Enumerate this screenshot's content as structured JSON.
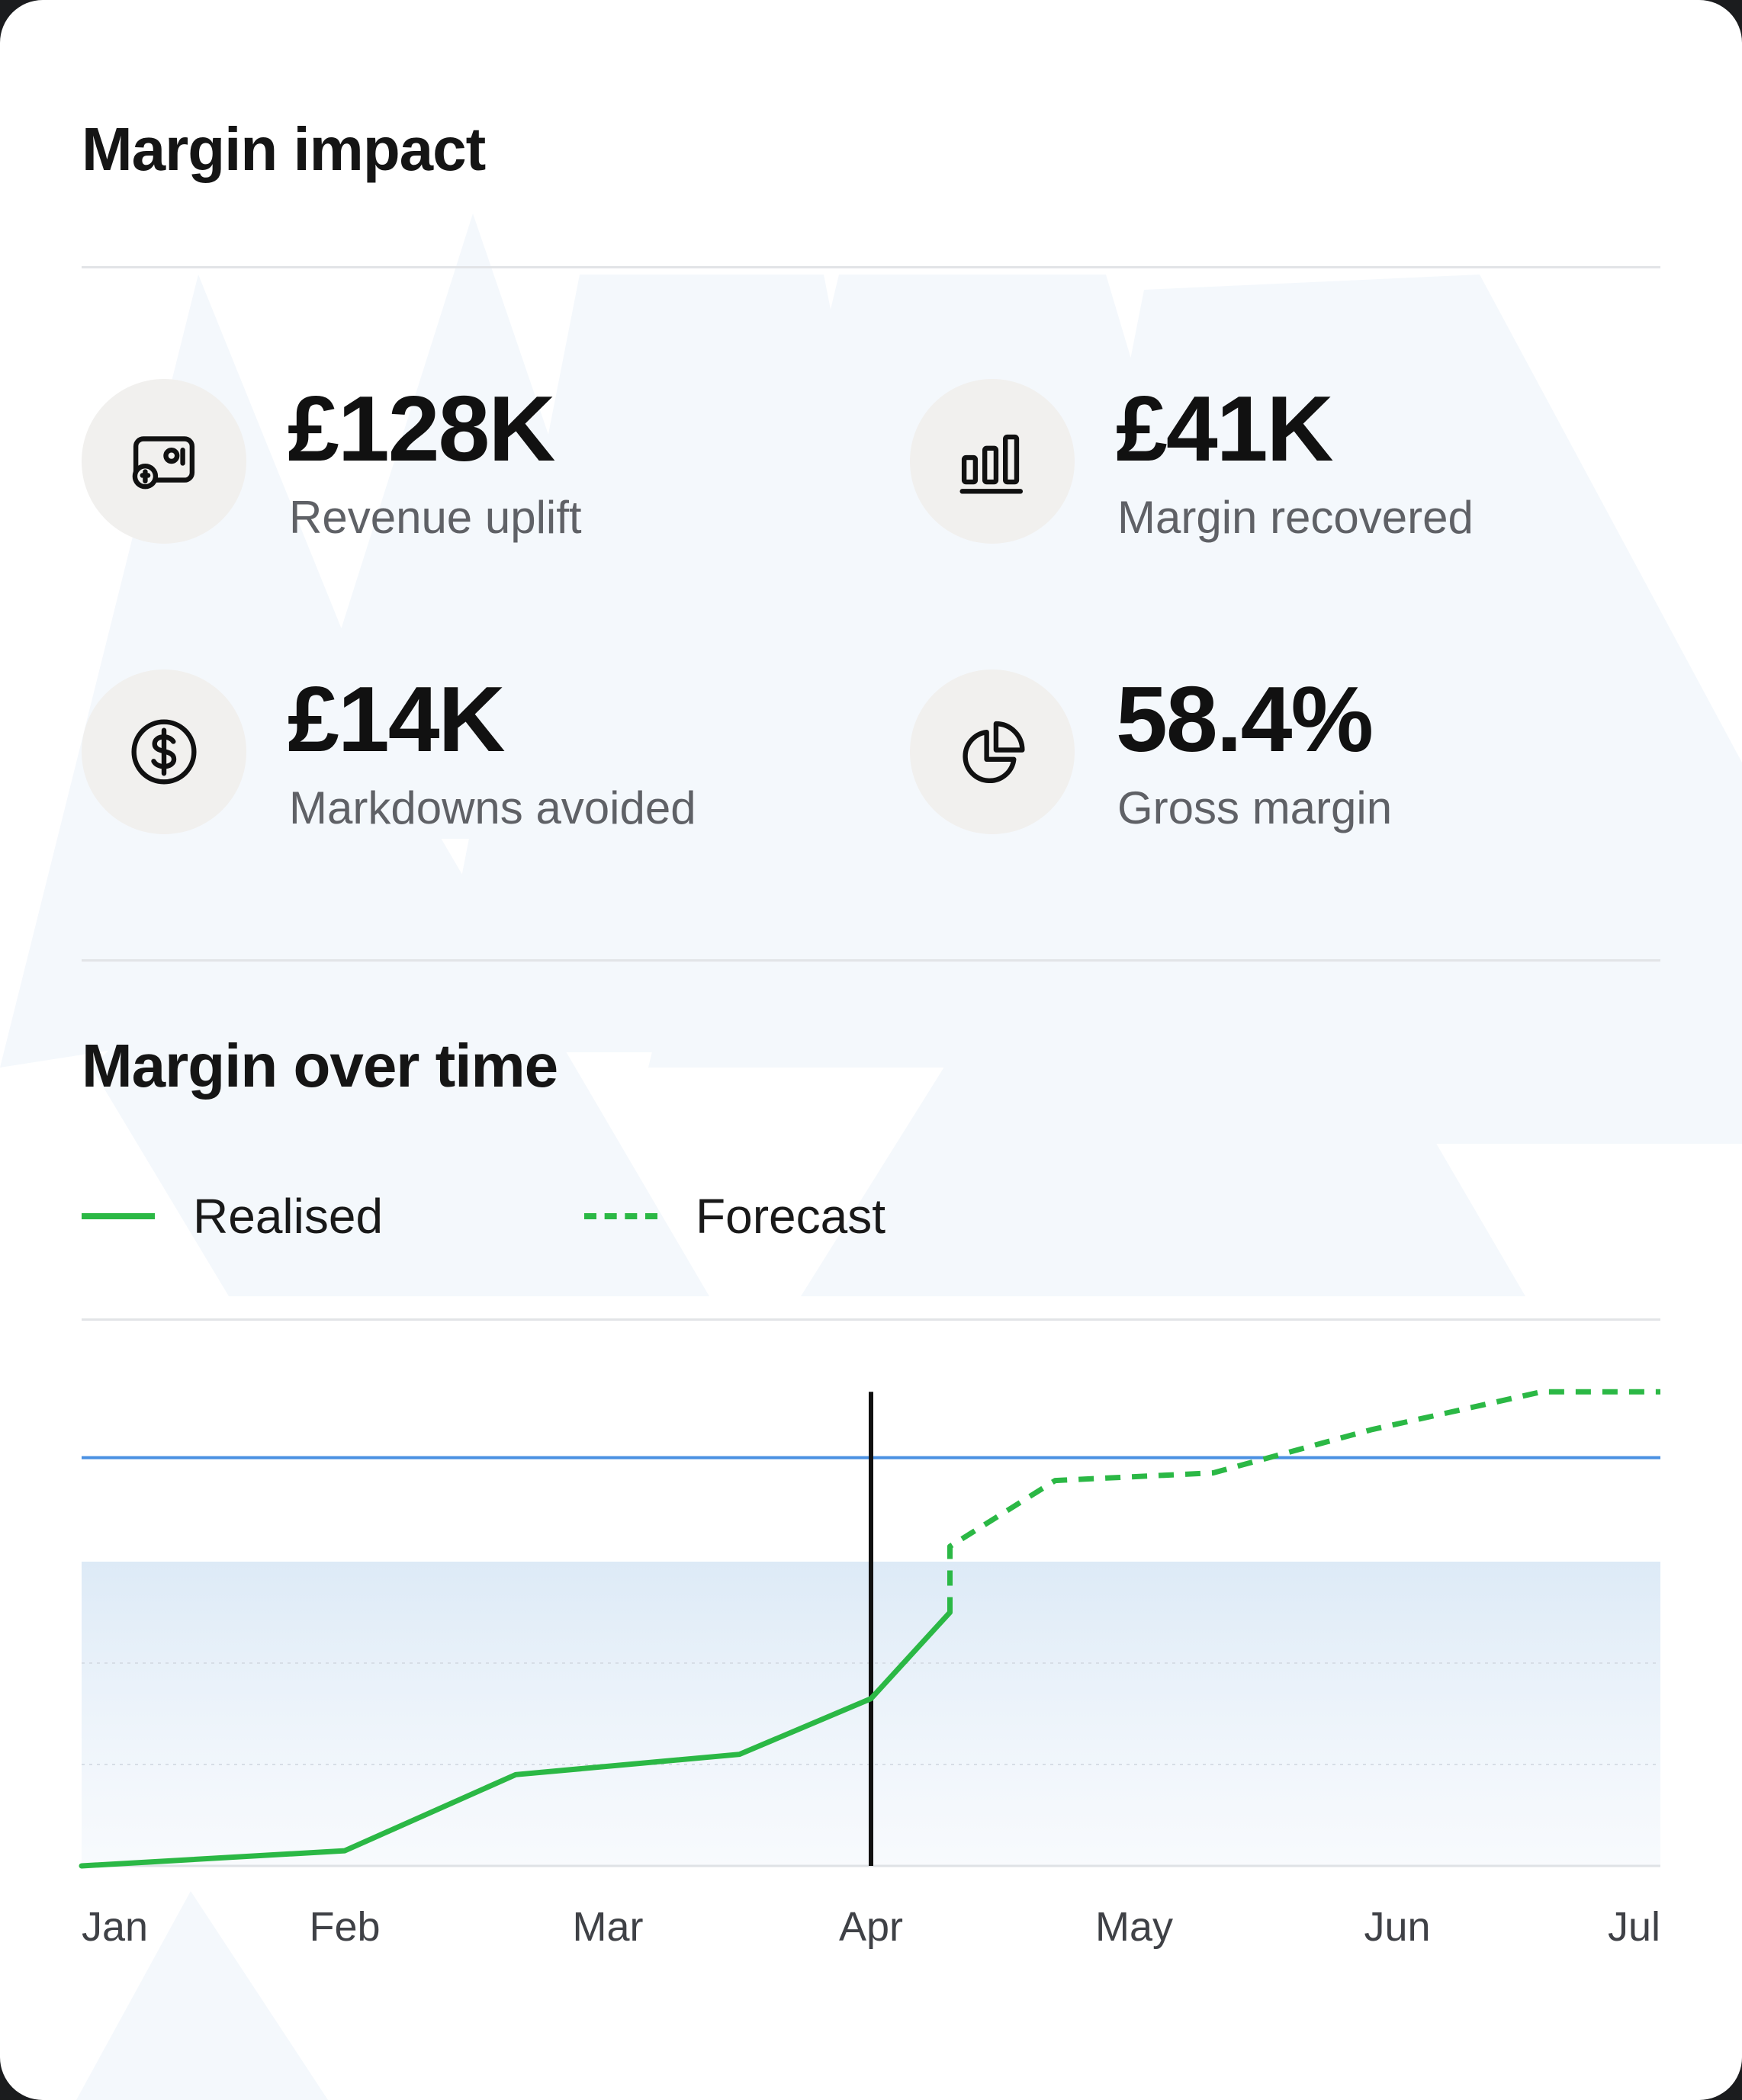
{
  "card": {
    "title": "Margin impact",
    "stats": [
      {
        "value": "£128K",
        "label": "Revenue uplift",
        "icon": "wallet-coin-icon"
      },
      {
        "value": "£41K",
        "label": "Margin recovered",
        "icon": "bar-chart-icon"
      },
      {
        "value": "£14K",
        "label": "Markdowns avoided",
        "icon": "dollar-coin-icon"
      },
      {
        "value": "58.4%",
        "label": "Gross margin",
        "icon": "pie-chart-icon"
      }
    ]
  },
  "chart_section": {
    "title": "Margin over time",
    "legend": [
      {
        "label": "Realised",
        "style": "solid",
        "color": "#2bb845"
      },
      {
        "label": "Forecast",
        "style": "dashed",
        "color": "#2bb845"
      }
    ]
  },
  "chart_data": {
    "type": "line",
    "title": "Margin over time",
    "xlabel": "",
    "ylabel": "",
    "x_ticks": [
      "Jan",
      "Feb",
      "Mar",
      "Apr",
      "May",
      "Jun",
      "Jul"
    ],
    "xlim": [
      0,
      6
    ],
    "ylim": [
      0,
      100
    ],
    "grid": false,
    "legend_position": "top-left",
    "series": [
      {
        "name": "Realised",
        "style": "solid",
        "color": "#2bb845",
        "points": [
          [
            0,
            0
          ],
          [
            1,
            3
          ],
          [
            1.65,
            18
          ],
          [
            2.5,
            22
          ],
          [
            3.0,
            33
          ],
          [
            3.3,
            50
          ]
        ]
      },
      {
        "name": "Forecast",
        "style": "dashed",
        "color": "#2bb845",
        "points": [
          [
            3.3,
            50
          ],
          [
            3.3,
            63
          ],
          [
            3.7,
            76
          ],
          [
            4.3,
            77.5
          ],
          [
            4.9,
            86
          ],
          [
            5.55,
            93.5
          ],
          [
            6.0,
            93.5
          ]
        ]
      }
    ],
    "reference_lines": [
      {
        "axis": "y",
        "value": 80.5,
        "color": "#4a90e2"
      },
      {
        "axis": "x",
        "value": 3.0,
        "color": "#111111",
        "range": [
          0,
          93.5
        ]
      }
    ],
    "bands": [
      {
        "y_range": [
          0,
          60
        ],
        "color": "#dbe9f6"
      }
    ],
    "band_gridlines": [
      20,
      40
    ]
  }
}
